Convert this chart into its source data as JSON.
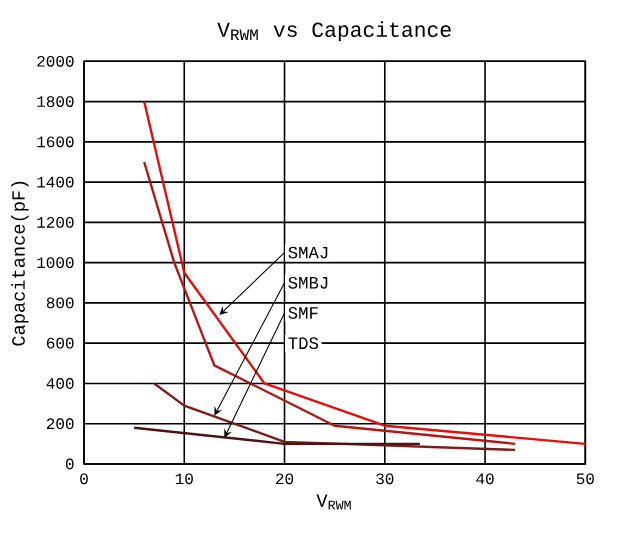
{
  "chart_data": {
    "type": "line",
    "title": "V$_{RWM}$ vs Capacitance",
    "xlabel": "V$_{RWM}$",
    "ylabel": "Capacitance(pF)",
    "xlim": [
      0,
      50
    ],
    "ylim": [
      0,
      2000
    ],
    "xticks": [
      0,
      10,
      20,
      30,
      40,
      50
    ],
    "yticks": [
      0,
      200,
      400,
      600,
      800,
      1000,
      1200,
      1400,
      1600,
      1800,
      2000
    ],
    "grid": true,
    "marker": "none",
    "line_style": "solid",
    "series": [
      {
        "color": "#e01010",
        "x": [
          6,
          10,
          18,
          30,
          50
        ],
        "values": [
          1800,
          950,
          400,
          190,
          100
        ]
      },
      {
        "color": "#b01818",
        "x": [
          6,
          9,
          13,
          25,
          43
        ],
        "values": [
          1500,
          1000,
          490,
          190,
          100
        ]
      },
      {
        "color": "#7a1c1c",
        "x": [
          7,
          10,
          20,
          43
        ],
        "values": [
          400,
          290,
          110,
          70
        ]
      },
      {
        "color": "#4a1414",
        "x": [
          5,
          20,
          33.5
        ],
        "values": [
          180,
          100,
          100
        ]
      }
    ],
    "annotations": [
      {
        "text": "SMAJ",
        "x": 13.5,
        "y": 740
      },
      {
        "text": "SMBJ",
        "x": 13,
        "y": 240
      },
      {
        "text": "SMF",
        "x": 14,
        "y": 130
      },
      "TDS"
    ]
  }
}
